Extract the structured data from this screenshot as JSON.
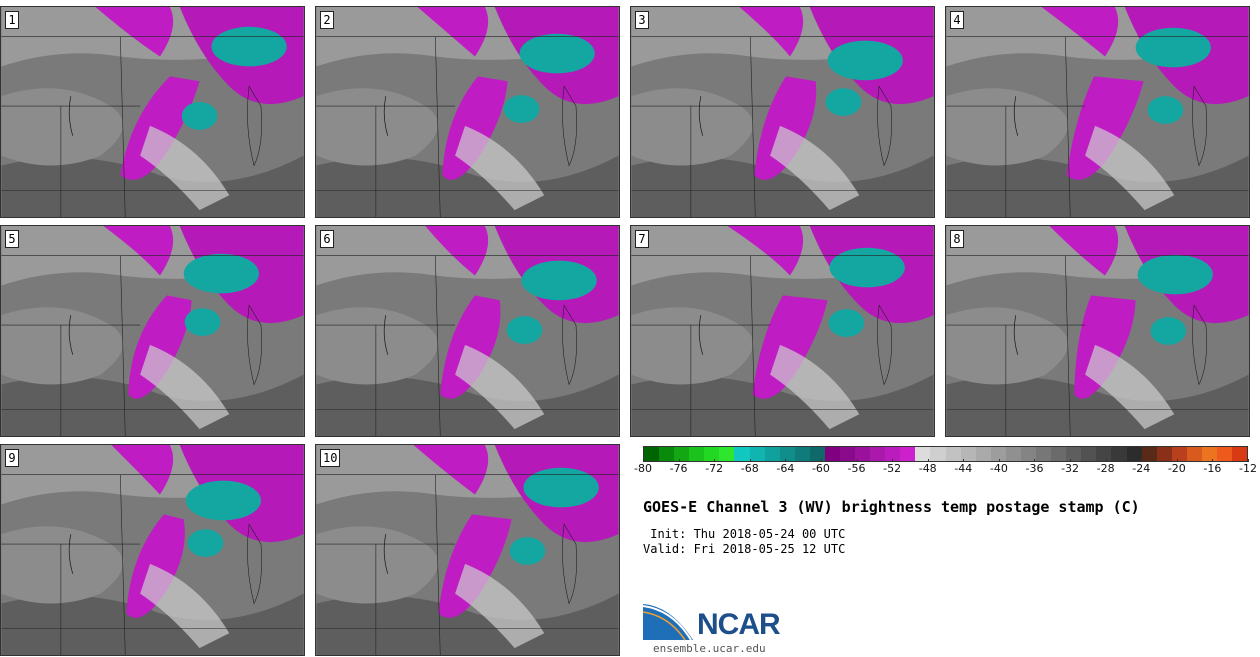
{
  "panels": [
    {
      "label": "1"
    },
    {
      "label": "2"
    },
    {
      "label": "3"
    },
    {
      "label": "4"
    },
    {
      "label": "5"
    },
    {
      "label": "6"
    },
    {
      "label": "7"
    },
    {
      "label": "8"
    },
    {
      "label": "9"
    },
    {
      "label": "10"
    }
  ],
  "colorbar": {
    "colors": [
      "#006400",
      "#0a8a0a",
      "#13a813",
      "#1cc21c",
      "#22d822",
      "#2ee62e",
      "#10c8c0",
      "#10b4b0",
      "#10a09e",
      "#108e8c",
      "#0f7b7a",
      "#0e6968",
      "#800080",
      "#8a0a8c",
      "#9a129c",
      "#aa18ac",
      "#bb1cbd",
      "#cc20cc",
      "#dcdcdc",
      "#cfcfcf",
      "#c2c2c2",
      "#b6b6b6",
      "#aaaaaa",
      "#9d9d9d",
      "#909090",
      "#848484",
      "#777777",
      "#6b6b6b",
      "#5e5e5e",
      "#525252",
      "#454545",
      "#393939",
      "#2c2c2c",
      "#5a2a18",
      "#8a3018",
      "#b8401c",
      "#d85a1c",
      "#ec7420",
      "#ee5a1c",
      "#d83a14"
    ],
    "ticks": [
      "-80",
      "-76",
      "-72",
      "-68",
      "-64",
      "-60",
      "-56",
      "-52",
      "-48",
      "-44",
      "-40",
      "-36",
      "-32",
      "-28",
      "-24",
      "-20",
      "-16",
      "-12"
    ]
  },
  "title": "GOES-E Channel 3 (WV) brightness temp postage stamp (C)",
  "init_line": " Init: Thu 2018-05-24 00 UTC",
  "valid_line": "Valid: Fri 2018-05-25 12 UTC",
  "logo": {
    "text": "NCAR",
    "url": "ensemble.ucar.edu"
  }
}
